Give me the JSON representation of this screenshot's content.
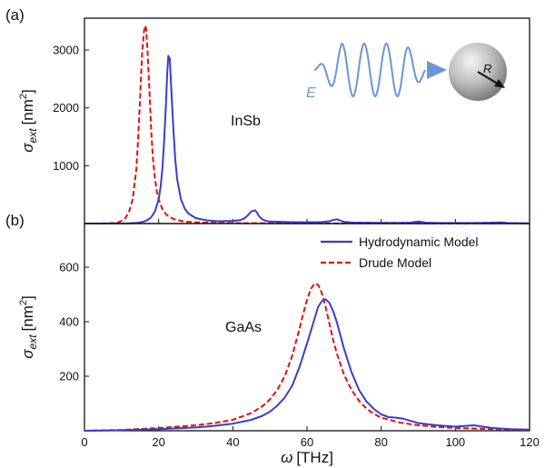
{
  "colors": {
    "hydro": "#3c3cc8",
    "drude": "#dd1111",
    "wave": "#6a96d8",
    "frame": "#111111"
  },
  "chart_data": [
    {
      "type": "line",
      "panel_label": "(a)",
      "annotation": "InSb",
      "ylabel_main": "σ",
      "ylabel_sub": "ext",
      "ylabel_unit": "[nm",
      "ylabel_sup": "2",
      "ylabel_close": "]",
      "xlim": [
        0,
        120
      ],
      "ylim": [
        0,
        3550
      ],
      "yticks": [
        1000,
        2000,
        3000
      ],
      "ytick_labels": [
        "1000",
        "2000",
        "3000"
      ],
      "inset": {
        "field_label": "E",
        "radius_label": "R"
      },
      "series": [
        {
          "name": "Hydrodynamic Model",
          "style": "solid",
          "x": [
            0,
            4,
            8,
            10,
            12,
            14,
            15,
            16,
            17,
            18,
            19,
            20,
            20.5,
            21,
            21.5,
            22,
            22.3,
            22.6,
            23,
            23.5,
            24,
            24.5,
            25,
            26,
            27,
            28,
            30,
            33,
            36,
            40,
            42,
            43,
            44,
            45,
            46,
            46.5,
            47,
            48,
            49,
            50,
            55,
            60,
            64,
            66,
            67,
            68,
            69,
            70,
            72,
            75,
            80,
            85,
            88,
            89,
            90,
            91,
            92,
            95,
            100,
            105,
            108,
            110,
            111,
            112,
            113,
            114,
            116,
            120
          ],
          "y": [
            0,
            0,
            1,
            2,
            5,
            12,
            20,
            35,
            60,
            110,
            210,
            420,
            620,
            950,
            1450,
            2100,
            2600,
            2900,
            2850,
            2200,
            1600,
            1100,
            760,
            420,
            260,
            175,
            95,
            55,
            40,
            45,
            60,
            85,
            140,
            210,
            230,
            190,
            130,
            70,
            45,
            35,
            25,
            22,
            25,
            40,
            60,
            75,
            50,
            30,
            18,
            15,
            12,
            12,
            15,
            25,
            35,
            25,
            15,
            10,
            10,
            10,
            12,
            15,
            18,
            20,
            15,
            10,
            8,
            5
          ]
        },
        {
          "name": "Drude Model",
          "style": "dashed",
          "x": [
            0,
            4,
            8,
            9,
            10,
            11,
            12,
            13,
            14,
            14.5,
            15,
            15.5,
            16,
            16.3,
            16.6,
            17,
            17.5,
            18,
            18.5,
            19,
            19.5,
            20,
            21,
            22,
            23,
            24,
            26,
            28,
            30,
            35,
            40,
            50,
            60,
            80,
            100,
            120
          ],
          "y": [
            0,
            1,
            10,
            20,
            45,
            95,
            200,
            420,
            950,
            1500,
            2200,
            2900,
            3300,
            3420,
            3380,
            3000,
            2300,
            1600,
            1100,
            780,
            560,
            420,
            250,
            160,
            110,
            80,
            45,
            30,
            22,
            12,
            8,
            5,
            3,
            2,
            2,
            2
          ]
        }
      ]
    },
    {
      "type": "line",
      "panel_label": "(b)",
      "annotation": "GaAs",
      "ylabel_main": "σ",
      "ylabel_sub": "ext",
      "ylabel_unit": "[nm",
      "ylabel_sup": "2",
      "ylabel_close": "]",
      "xlabel_main": "ω",
      "xlabel_unit": "[THz]",
      "xlim": [
        0,
        120
      ],
      "ylim": [
        0,
        760
      ],
      "xticks": [
        0,
        20,
        40,
        60,
        80,
        100,
        120
      ],
      "xtick_labels": [
        "0",
        "20",
        "40",
        "60",
        "80",
        "100",
        "120"
      ],
      "yticks": [
        200,
        400,
        600
      ],
      "ytick_labels": [
        "200",
        "400",
        "600"
      ],
      "legend": {
        "position": "top-right",
        "items": [
          "Hydrodynamic Model",
          "Drude Model"
        ]
      },
      "series": [
        {
          "name": "Hydrodynamic Model",
          "style": "solid",
          "x": [
            0,
            10,
            20,
            30,
            35,
            40,
            45,
            48,
            50,
            52,
            54,
            56,
            58,
            60,
            62,
            63,
            64,
            65,
            66,
            67,
            68,
            69,
            70,
            72,
            74,
            76,
            78,
            80,
            82,
            84,
            86,
            88,
            90,
            95,
            100,
            103,
            105,
            107,
            110,
            115,
            120
          ],
          "y": [
            0,
            2,
            6,
            12,
            18,
            26,
            40,
            55,
            70,
            92,
            122,
            165,
            235,
            320,
            410,
            455,
            475,
            482,
            470,
            440,
            400,
            350,
            300,
            215,
            150,
            108,
            80,
            60,
            50,
            48,
            44,
            36,
            28,
            20,
            15,
            18,
            20,
            16,
            10,
            6,
            4
          ]
        },
        {
          "name": "Drude Model",
          "style": "dashed",
          "x": [
            0,
            10,
            20,
            30,
            35,
            40,
            45,
            48,
            50,
            52,
            54,
            56,
            58,
            59,
            60,
            61,
            62,
            63,
            64,
            65,
            66,
            67,
            68,
            70,
            72,
            74,
            76,
            78,
            80,
            85,
            90,
            95,
            100,
            110,
            120
          ],
          "y": [
            0,
            3,
            10,
            20,
            28,
            40,
            65,
            90,
            115,
            150,
            200,
            275,
            375,
            430,
            480,
            520,
            540,
            535,
            505,
            455,
            395,
            335,
            285,
            205,
            150,
            110,
            82,
            62,
            48,
            30,
            20,
            14,
            10,
            6,
            3
          ]
        }
      ]
    }
  ]
}
